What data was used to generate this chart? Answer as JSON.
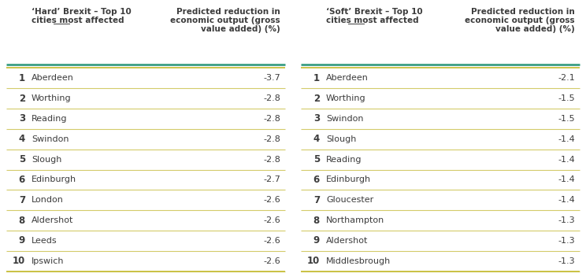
{
  "hard_brexit": {
    "ranks": [
      "1",
      "2",
      "3",
      "4",
      "5",
      "6",
      "7",
      "8",
      "9",
      "10"
    ],
    "cities": [
      "Aberdeen",
      "Worthing",
      "Reading",
      "Swindon",
      "Slough",
      "Edinburgh",
      "London",
      "Aldershot",
      "Leeds",
      "Ipswich"
    ],
    "values": [
      "-3.7",
      "-2.8",
      "-2.8",
      "-2.8",
      "-2.8",
      "-2.7",
      "-2.6",
      "-2.6",
      "-2.6",
      "-2.6"
    ],
    "col1_header_line1": "‘Hard’ Brexit – Top 10",
    "col1_header_line2": "cities most affected",
    "col1_header_underline": "most",
    "col2_header_line1": "Predicted reduction in",
    "col2_header_line2": "economic output (gross",
    "col2_header_line3": "value added) (%)"
  },
  "soft_brexit": {
    "ranks": [
      "1",
      "2",
      "3",
      "4",
      "5",
      "6",
      "7",
      "8",
      "9",
      "10"
    ],
    "cities": [
      "Aberdeen",
      "Worthing",
      "Swindon",
      "Slough",
      "Reading",
      "Edinburgh",
      "Gloucester",
      "Northampton",
      "Aldershot",
      "Middlesbrough"
    ],
    "values": [
      "-2.1",
      "-1.5",
      "-1.5",
      "-1.4",
      "-1.4",
      "-1.4",
      "-1.4",
      "-1.3",
      "-1.3",
      "-1.3"
    ],
    "col1_header_line1": "‘Soft’ Brexit – Top 10",
    "col1_header_line2": "cities most affected",
    "col1_header_underline": "most",
    "col2_header_line1": "Predicted reduction in",
    "col2_header_line2": "economic output (gross",
    "col2_header_line3": "value added) (%)"
  },
  "bg_color": "#ffffff",
  "teal_color": "#3a9e84",
  "yellow_color": "#c8be3c",
  "row_sep_color": "#d4cb6a",
  "text_color": "#3c3c3c",
  "header_fontsize": 7.5,
  "data_fontsize": 8.0,
  "rank_fontsize": 8.5
}
